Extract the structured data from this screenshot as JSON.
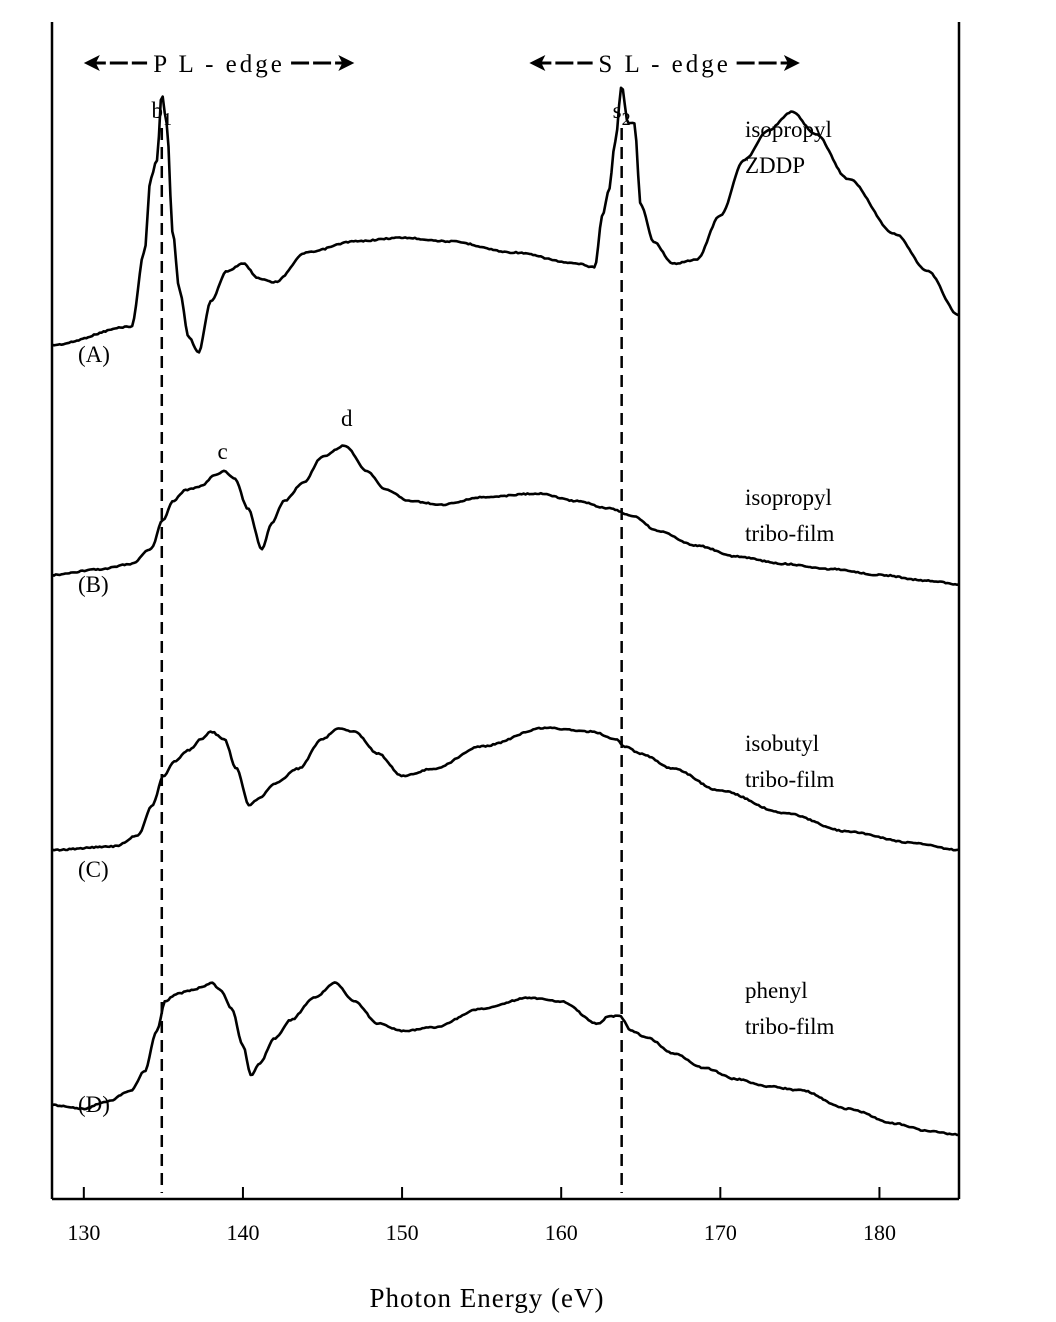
{
  "chart_data": {
    "type": "line",
    "title": "",
    "xlabel": "Photon Energy (eV)",
    "ylabel": "",
    "xlim": [
      128,
      185
    ],
    "xticks": [
      130,
      140,
      150,
      160,
      170,
      180
    ],
    "grid": false,
    "edge_labels": [
      {
        "text": "P L - edge",
        "from": 130,
        "to": 147
      },
      {
        "text": "S L - edge",
        "from": 158,
        "to": 175
      }
    ],
    "reference_lines": [
      {
        "x": 134.9,
        "label": "b",
        "sub": "1"
      },
      {
        "x": 163.8,
        "label": "s",
        "sub": "2"
      }
    ],
    "peak_labels": [
      {
        "text": "c",
        "x": 138.6,
        "series": 1
      },
      {
        "text": "d",
        "x": 146.4,
        "series": 1
      }
    ],
    "series": [
      {
        "name": "isopropyl ZDDP",
        "panel_label": "(A)",
        "label_lines": [
          "isopropyl",
          "ZDDP"
        ],
        "baseline": 345,
        "x": [
          128,
          133,
          133.8,
          134.2,
          134.6,
          134.9,
          135.2,
          135.6,
          136,
          136.6,
          137.2,
          138,
          139,
          140,
          141,
          142,
          144,
          147,
          150,
          153,
          157,
          161,
          162.1,
          162.6,
          163,
          163.4,
          163.8,
          164.2,
          164.6,
          165,
          165.8,
          167,
          168.5,
          170,
          171.5,
          173,
          174.5,
          176,
          178,
          181,
          183,
          185
        ],
        "values": [
          0,
          5,
          25,
          45,
          50,
          68,
          60,
          30,
          15,
          2,
          -2,
          12,
          20,
          22,
          18,
          17,
          25,
          28,
          29,
          28,
          25,
          22,
          21,
          35,
          42,
          55,
          70,
          60,
          60,
          38,
          28,
          22,
          23,
          35,
          50,
          58,
          63,
          57,
          45,
          30,
          20,
          8
        ]
      },
      {
        "name": "isopropyl tribo-film",
        "panel_label": "(B)",
        "label_lines": [
          "isopropyl",
          "tribo-film"
        ],
        "baseline": 575,
        "x": [
          128,
          131,
          133,
          134.2,
          135,
          135.6,
          136.4,
          137.4,
          138.2,
          138.8,
          139.5,
          140.3,
          141.2,
          141.8,
          142.6,
          143.8,
          145,
          146.4,
          147.8,
          149,
          150.5,
          152.5,
          155,
          158.5,
          161,
          163,
          164.5,
          166,
          168.5,
          171,
          174,
          177,
          180,
          183,
          185
        ],
        "values": [
          0,
          1.5,
          3,
          7,
          15,
          20,
          23,
          24,
          27,
          28,
          26,
          18,
          7,
          14,
          20,
          25,
          32,
          35,
          28,
          23,
          20,
          19,
          21,
          22,
          20,
          18,
          16,
          12,
          8,
          5,
          3,
          1.6,
          0,
          -1.5,
          -2.5
        ]
      },
      {
        "name": "isobutyl tribo-film",
        "panel_label": "(C)",
        "label_lines": [
          "isobutyl",
          "tribo-film"
        ],
        "baseline": 850,
        "x": [
          128,
          132,
          133.4,
          134.3,
          135,
          135.7,
          136.6,
          137.4,
          138,
          138.8,
          139.6,
          140.4,
          141,
          142,
          143.5,
          145,
          146,
          147,
          148.5,
          150,
          152,
          155,
          159,
          162,
          163.4,
          164,
          165,
          167,
          170,
          174,
          178,
          182,
          185
        ],
        "values": [
          0,
          1,
          4,
          12,
          20,
          24,
          27,
          30,
          32,
          30,
          22,
          12,
          14,
          18,
          22,
          30,
          33,
          32,
          26,
          20,
          22,
          28,
          33,
          32,
          30,
          28,
          26,
          22,
          16,
          10,
          5,
          2,
          0
        ]
      },
      {
        "name": "phenyl tribo-film",
        "panel_label": "(D)",
        "label_lines": [
          "phenyl",
          "tribo-film"
        ],
        "baseline": 1105,
        "x": [
          128,
          130,
          131.5,
          133,
          133.8,
          134.6,
          135.1,
          135.8,
          136.8,
          137.5,
          138,
          138.6,
          139.3,
          140,
          140.5,
          141,
          142,
          143,
          144.5,
          145.8,
          147,
          148.5,
          150,
          152,
          155,
          158,
          160,
          162.3,
          163,
          163.7,
          164.4,
          165.5,
          167,
          169,
          171,
          173,
          175,
          178,
          181,
          183,
          185
        ],
        "values": [
          0,
          -1,
          1,
          4,
          9,
          20,
          28,
          30,
          31,
          32,
          33,
          31,
          26,
          16,
          8,
          11,
          18,
          23,
          29,
          33,
          28,
          22,
          20,
          21,
          26,
          29,
          28,
          22,
          24,
          24,
          20,
          18,
          14,
          10,
          7,
          5,
          4,
          -1,
          -5,
          -7,
          -8
        ]
      }
    ]
  }
}
